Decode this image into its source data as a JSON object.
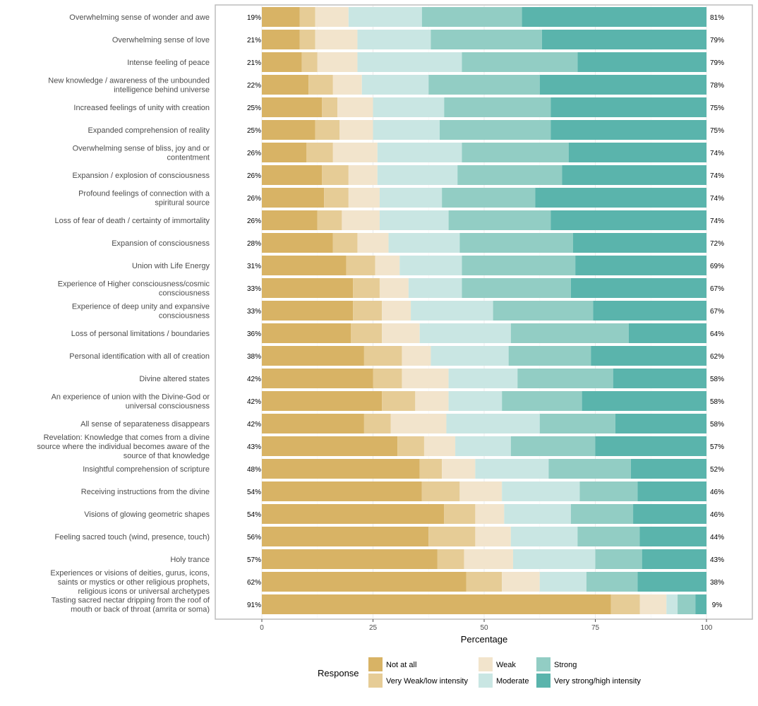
{
  "chart_data": {
    "type": "bar",
    "orientation": "horizontal",
    "stacked": "diverging-likert",
    "xlabel": "Percentage",
    "xlim": [
      0,
      100
    ],
    "xticks": [
      "0",
      "25",
      "50",
      "75",
      "100"
    ],
    "legend_title": "Response",
    "legend_position": "bottom",
    "grid": true,
    "series": [
      {
        "name": "Not at all",
        "color": "#d8b365"
      },
      {
        "name": "Very Weak/low intensity",
        "color": "#e6cc96"
      },
      {
        "name": "Weak",
        "color": "#f2e4cc"
      },
      {
        "name": "Moderate",
        "color": "#c9e6e3"
      },
      {
        "name": "Strong",
        "color": "#92cdc4"
      },
      {
        "name": "Very strong/high intensity",
        "color": "#5ab4ac"
      }
    ],
    "categories": [
      {
        "label": "Overwhelming sense of wonder and awe",
        "values": [
          8.5,
          3.5,
          7.5,
          16.5,
          22.5,
          41.5
        ],
        "low": "19%",
        "high": "81%"
      },
      {
        "label": "Overwhelming sense of love",
        "values": [
          8.5,
          3.5,
          9.5,
          16.5,
          25,
          37
        ],
        "low": "21%",
        "high": "79%"
      },
      {
        "label": "Intense feeling of peace",
        "values": [
          9,
          3.5,
          9,
          23.5,
          26,
          29
        ],
        "low": "21%",
        "high": "79%"
      },
      {
        "label": "New knowledge / awareness of the unbounded intelligence behind universe",
        "values": [
          10.5,
          5.5,
          6.5,
          15,
          25,
          37.5
        ],
        "low": "22%",
        "high": "78%"
      },
      {
        "label": "Increased feelings of unity with creation",
        "values": [
          13.5,
          3.5,
          8,
          16,
          24,
          35
        ],
        "low": "25%",
        "high": "75%"
      },
      {
        "label": "Expanded comprehension of reality",
        "values": [
          12,
          5.5,
          7.5,
          15,
          25,
          35
        ],
        "low": "25%",
        "high": "75%"
      },
      {
        "label": "Overwhelming sense of bliss, joy and or contentment",
        "values": [
          10,
          6,
          10,
          19,
          24,
          31
        ],
        "low": "26%",
        "high": "74%"
      },
      {
        "label": "Expansion / explosion of consciousness",
        "values": [
          13.5,
          6,
          6.5,
          18,
          23.5,
          32.5
        ],
        "low": "26%",
        "high": "74%"
      },
      {
        "label": "Profound feelings of connection with a spiritural source",
        "values": [
          14,
          5.5,
          7,
          14,
          21,
          38.5
        ],
        "low": "26%",
        "high": "74%"
      },
      {
        "label": "Loss of fear of death / certainty of immortality",
        "values": [
          12.5,
          5.5,
          8.5,
          15.5,
          23,
          35
        ],
        "low": "26%",
        "high": "74%"
      },
      {
        "label": "Expansion of consciousness",
        "values": [
          16,
          5.5,
          7,
          16,
          25.5,
          30
        ],
        "low": "28%",
        "high": "72%"
      },
      {
        "label": "Union with Life Energy",
        "values": [
          19,
          6.5,
          5.5,
          14,
          25.5,
          29.5
        ],
        "low": "31%",
        "high": "69%"
      },
      {
        "label": "Experience of Higher consciousness/cosmic consciousness",
        "values": [
          20.5,
          6,
          6.5,
          12,
          24.5,
          30.5
        ],
        "low": "33%",
        "high": "67%"
      },
      {
        "label": "Experience of deep unity and expansive consciousness",
        "values": [
          20.5,
          6.5,
          6.5,
          18.5,
          22.5,
          25.5
        ],
        "low": "33%",
        "high": "67%"
      },
      {
        "label": "Loss of personal limitations / boundaries",
        "values": [
          20,
          7,
          8.5,
          20.5,
          26.5,
          17.5
        ],
        "low": "36%",
        "high": "64%"
      },
      {
        "label": "Personal identification with all of creation",
        "values": [
          23,
          8.5,
          6.5,
          17.5,
          18.5,
          26
        ],
        "low": "38%",
        "high": "62%"
      },
      {
        "label": "Divine altered states",
        "values": [
          25,
          6.5,
          10.5,
          15.5,
          21.5,
          21
        ],
        "low": "42%",
        "high": "58%"
      },
      {
        "label": "An experience of union with the Divine-God or universal consciousness",
        "values": [
          27,
          7.5,
          7.5,
          12,
          18,
          28
        ],
        "low": "42%",
        "high": "58%"
      },
      {
        "label": "All sense of separateness disappears",
        "values": [
          23,
          6,
          12.5,
          21,
          17,
          20.5
        ],
        "low": "42%",
        "high": "58%"
      },
      {
        "label": "Revelation: Knowledge that comes from a divine source where the individual becomes aware of the source of that knowledge",
        "values": [
          30.5,
          6,
          7,
          12.5,
          19,
          25
        ],
        "low": "43%",
        "high": "57%"
      },
      {
        "label": "Insightful comprehension of scripture",
        "values": [
          35.5,
          5,
          7.5,
          16.5,
          18.5,
          17
        ],
        "low": "48%",
        "high": "52%"
      },
      {
        "label": "Receiving instructions from the divine",
        "values": [
          36,
          8.5,
          9.5,
          17.5,
          13,
          15.5
        ],
        "low": "54%",
        "high": "46%"
      },
      {
        "label": "Visions of glowing geometric shapes",
        "values": [
          41,
          7,
          6.5,
          15,
          14,
          16.5
        ],
        "low": "54%",
        "high": "46%"
      },
      {
        "label": "Feeling sacred touch (wind, presence, touch)",
        "values": [
          37.5,
          10.5,
          8,
          15,
          14,
          15
        ],
        "low": "56%",
        "high": "44%"
      },
      {
        "label": "Holy trance",
        "values": [
          39.5,
          6,
          11,
          18.5,
          10.5,
          14.5
        ],
        "low": "57%",
        "high": "43%"
      },
      {
        "label": "Experiences or visions of deities, gurus, icons, saints or mystics or other religious prophets, religious icons or universal archetypes",
        "values": [
          46,
          8,
          8.5,
          10.5,
          11.5,
          15.5
        ],
        "low": "62%",
        "high": "38%"
      },
      {
        "label": "Tasting sacred nectar dripping from the roof of mouth or back of throat (amrita or soma)",
        "values": [
          78.5,
          6.5,
          6,
          2.5,
          4,
          2.5
        ],
        "low": "91%",
        "high": "9%"
      }
    ]
  }
}
